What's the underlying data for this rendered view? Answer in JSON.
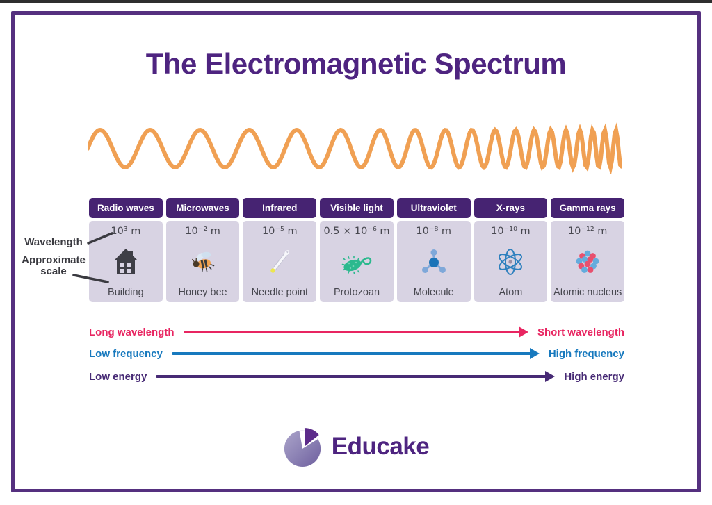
{
  "title": "The Electromagnetic Spectrum",
  "wave": {
    "name": "decreasing-wavelength-wave",
    "color": "#f0a053"
  },
  "annotations": {
    "wavelength": "Wavelength",
    "approximate_scale": "Approximate scale"
  },
  "spectrum": {
    "bands": [
      {
        "name": "Radio waves",
        "wavelength": "10³ m",
        "scale": "Building",
        "icon": "building-icon"
      },
      {
        "name": "Microwaves",
        "wavelength": "10⁻² m",
        "scale": "Honey bee",
        "icon": "honey-bee-icon"
      },
      {
        "name": "Infrared",
        "wavelength": "10⁻⁵ m",
        "scale": "Needle point",
        "icon": "needle-point-icon"
      },
      {
        "name": "Visible light",
        "wavelength": "0.5 × 10⁻⁶ m",
        "scale": "Protozoan",
        "icon": "protozoan-icon"
      },
      {
        "name": "Ultraviolet",
        "wavelength": "10⁻⁸ m",
        "scale": "Molecule",
        "icon": "molecule-icon"
      },
      {
        "name": "X-rays",
        "wavelength": "10⁻¹⁰ m",
        "scale": "Atom",
        "icon": "atom-icon"
      },
      {
        "name": "Gamma rays",
        "wavelength": "10⁻¹² m",
        "scale": "Atomic nucleus",
        "icon": "atomic-nucleus-icon"
      }
    ]
  },
  "arrows": [
    {
      "left": "Long wavelength",
      "right": "Short wavelength",
      "color": "#e82561"
    },
    {
      "left": "Low frequency",
      "right": "High frequency",
      "color": "#1779be"
    },
    {
      "left": "Low energy",
      "right": "High energy",
      "color": "#472a75"
    }
  ],
  "logo": {
    "text": "Educake"
  },
  "colors": {
    "brand_purple": "#4e2480",
    "header_purple": "#462372",
    "cell_lavender": "#d8d3e3",
    "frame_border": "#55307f",
    "wave_orange": "#f0a053",
    "arrow_pink": "#e82561",
    "arrow_blue": "#1779be",
    "arrow_purple": "#472a75"
  }
}
